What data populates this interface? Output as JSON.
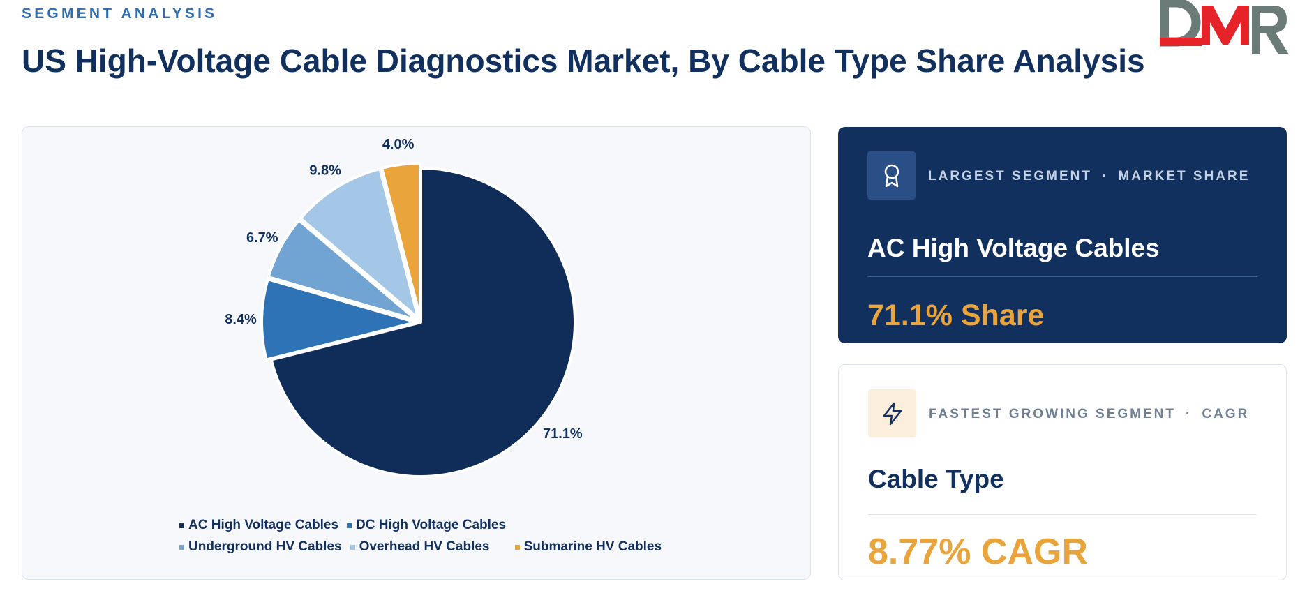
{
  "header": {
    "eyebrow": "SEGMENT ANALYSIS",
    "title": "US High-Voltage Cable Diagnostics Market, By Cable Type Share Analysis",
    "logo_text": "DMR"
  },
  "colors": {
    "brand_navy": "#12305e",
    "accent_orange": "#e9a43c",
    "logo_gray": "#6b7c78",
    "logo_red": "#e52329"
  },
  "chart_data": {
    "type": "pie",
    "categories": [
      "AC High Voltage Cables",
      "DC High Voltage Cables",
      "Underground HV Cables",
      "Overhead HV Cables",
      "Submarine HV Cables"
    ],
    "values": [
      71.1,
      8.4,
      6.7,
      9.8,
      4.0
    ],
    "labels": [
      "71.1%",
      "8.4%",
      "6.7%",
      "9.8%",
      "4.0%"
    ],
    "colors": [
      "#102d5a",
      "#2e73b5",
      "#72a4d3",
      "#a4c6e7",
      "#e9a43c"
    ],
    "start_angle": "12 o'clock",
    "direction": "clockwise",
    "exploded": true,
    "legend_placement": "bottom"
  },
  "cards": {
    "largest": {
      "icon": "award-icon",
      "caption_left": "LARGEST SEGMENT",
      "separator": "·",
      "caption_right": "MARKET SHARE",
      "name": "AC High Voltage Cables",
      "value": "71.1% Share"
    },
    "fastest": {
      "icon": "lightning-icon",
      "caption_left": "FASTEST GROWING SEGMENT",
      "separator": "·",
      "caption_right": "CAGR",
      "name": "Cable Type",
      "value": "8.77% CAGR"
    }
  }
}
